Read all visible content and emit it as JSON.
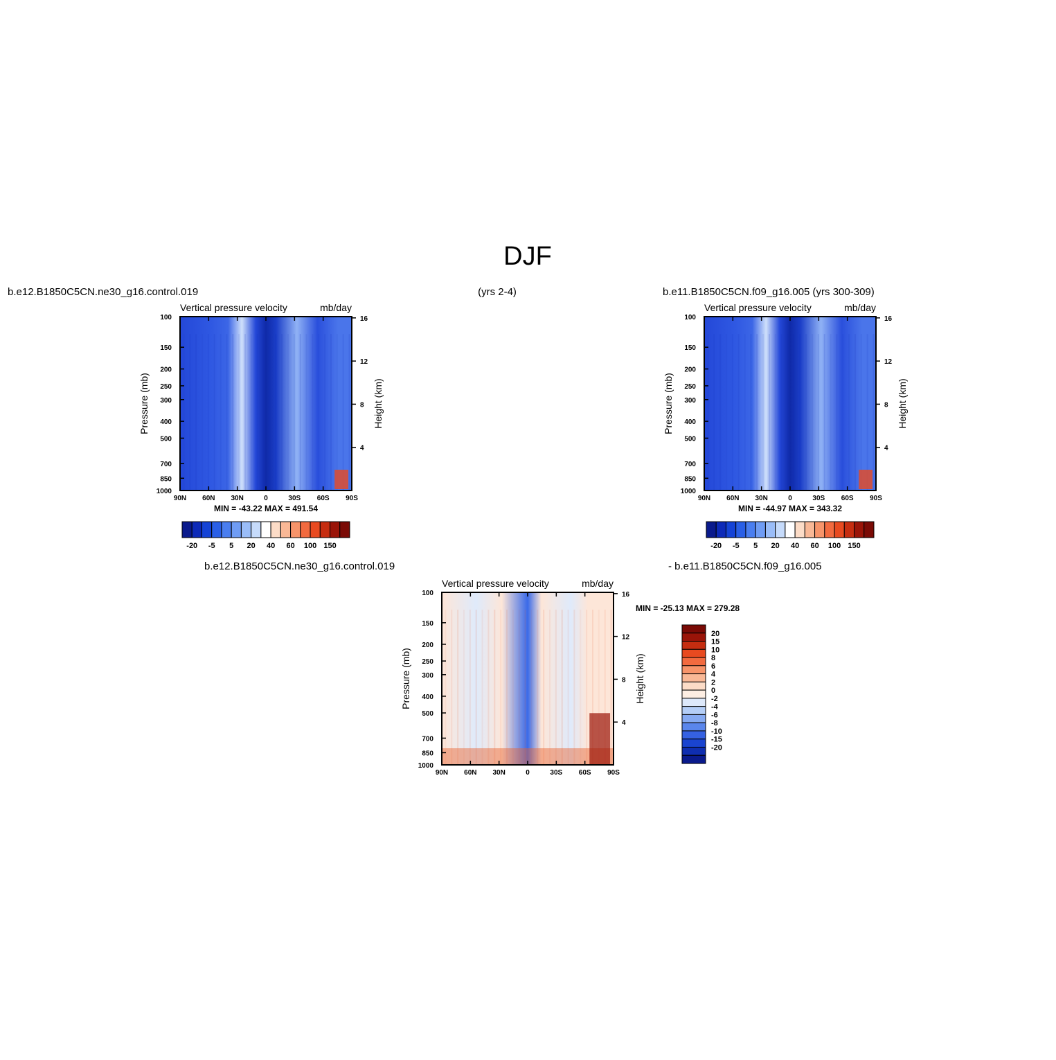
{
  "main_title": "DJF",
  "header": {
    "left": "b.e12.B1850C5CN.ne30_g16.control.019",
    "middle": "(yrs 2-4)",
    "right": "b.e11.B1850C5CN.f09_g16.005 (yrs 300-309)"
  },
  "diff_header": {
    "left": "b.e12.B1850C5CN.ne30_g16.control.019",
    "right": "- b.e11.B1850C5CN.f09_g16.005"
  },
  "panels": [
    {
      "subtitle_left": "Vertical pressure velocity",
      "subtitle_right": "mb/day",
      "ylabel": "Pressure (mb)",
      "y2label": "Height (km)",
      "minmax": "MIN = -43.22   MAX = 491.54"
    },
    {
      "subtitle_left": "Vertical pressure velocity",
      "subtitle_right": "mb/day",
      "ylabel": "Pressure (mb)",
      "y2label": "Height (km)",
      "minmax": "MIN = -44.97   MAX = 343.32"
    },
    {
      "subtitle_left": "Vertical pressure velocity",
      "subtitle_right": "mb/day",
      "ylabel": "Pressure (mb)",
      "y2label": "Height (km)",
      "minmax": "MIN = -25.13   MAX = 279.28"
    }
  ],
  "chart_data": [
    {
      "type": "heatmap",
      "title": "Vertical pressure velocity",
      "units": "mb/day",
      "x_ticks": [
        "90N",
        "60N",
        "30N",
        "0",
        "30S",
        "60S",
        "90S"
      ],
      "y_ticks": [
        "100",
        "150",
        "200",
        "250",
        "300",
        "400",
        "500",
        "700",
        "850",
        "1000"
      ],
      "y2_ticks": [
        "16",
        "12",
        "8",
        "4"
      ],
      "ylim": [
        1000,
        100
      ],
      "xlim": [
        "90N",
        "90S"
      ],
      "min": -43.22,
      "max": 491.54
    },
    {
      "type": "heatmap",
      "title": "Vertical pressure velocity",
      "units": "mb/day",
      "x_ticks": [
        "90N",
        "60N",
        "30N",
        "0",
        "30S",
        "60S",
        "90S"
      ],
      "y_ticks": [
        "100",
        "150",
        "200",
        "250",
        "300",
        "400",
        "500",
        "700",
        "850",
        "1000"
      ],
      "y2_ticks": [
        "16",
        "12",
        "8",
        "4"
      ],
      "ylim": [
        1000,
        100
      ],
      "xlim": [
        "90N",
        "90S"
      ],
      "min": -44.97,
      "max": 343.32
    },
    {
      "type": "heatmap",
      "title": "Vertical pressure velocity",
      "units": "mb/day",
      "x_ticks": [
        "90N",
        "60N",
        "30N",
        "0",
        "30S",
        "60S",
        "90S"
      ],
      "y_ticks": [
        "100",
        "150",
        "200",
        "250",
        "300",
        "400",
        "500",
        "700",
        "850",
        "1000"
      ],
      "y2_ticks": [
        "16",
        "12",
        "8",
        "4"
      ],
      "ylim": [
        1000,
        100
      ],
      "xlim": [
        "90N",
        "90S"
      ],
      "min": -25.13,
      "max": 279.28
    }
  ],
  "colorbars": {
    "top": {
      "labels": [
        "-20",
        "-5",
        "5",
        "20",
        "40",
        "60",
        "100",
        "150"
      ],
      "colors": [
        "#0a1a8c",
        "#0d2ab8",
        "#1543d6",
        "#2a5fe6",
        "#4a7ef0",
        "#6f9cf4",
        "#9abdf8",
        "#c6dbfb",
        "#ffffff",
        "#fcdcc7",
        "#f9b896",
        "#f7946a",
        "#f26a3f",
        "#e84a20",
        "#c62d10",
        "#9a1408",
        "#7a0a05"
      ]
    },
    "diff": {
      "labels": [
        "20",
        "15",
        "10",
        "8",
        "6",
        "4",
        "2",
        "0",
        "-2",
        "-4",
        "-6",
        "-8",
        "-10",
        "-15",
        "-20"
      ],
      "colors": [
        "#7a0a05",
        "#9a1408",
        "#c62d10",
        "#e84a20",
        "#f26a3f",
        "#f7946a",
        "#f9b896",
        "#fcdcc7",
        "#fdeee3",
        "#dde9fb",
        "#b4cef7",
        "#86aaf2",
        "#5a86ec",
        "#3561e2",
        "#1a44d0",
        "#0f2eb0",
        "#0a1a8c"
      ]
    }
  }
}
